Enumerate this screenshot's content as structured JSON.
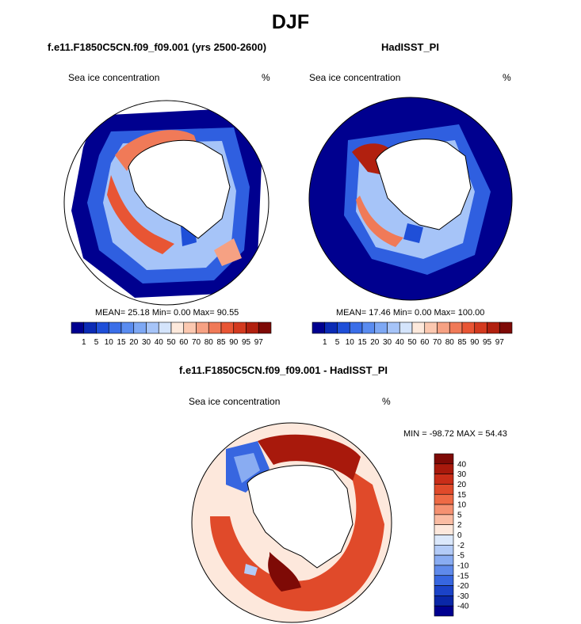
{
  "main_title": "DJF",
  "panels": [
    {
      "title": "f.e11.F1850C5CN.f09_f09.001 (yrs 2500-2600)",
      "variable": "Sea ice concentration",
      "units": "%",
      "stats": "MEAN=  25.18  Min=   0.00  Max=  90.55"
    },
    {
      "title": "HadISST_PI",
      "variable": "Sea ice concentration",
      "units": "%",
      "stats": "MEAN=  17.46  Min=   0.00  Max= 100.00"
    },
    {
      "title": "f.e11.F1850C5CN.f09_f09.001 - HadISST_PI",
      "variable": "Sea ice concentration",
      "units": "%",
      "stats": "MIN = -98.72 MAX =  54.43"
    }
  ],
  "colorbar_abs": {
    "levels": [
      "1",
      "5",
      "10",
      "15",
      "20",
      "30",
      "40",
      "50",
      "60",
      "70",
      "80",
      "85",
      "90",
      "95",
      "97"
    ],
    "colors": [
      "#00008f",
      "#0b2bb5",
      "#1f4fd8",
      "#3a6ee8",
      "#5a8cf0",
      "#7ea8f4",
      "#a6c4f8",
      "#d4e4fb",
      "#fde9dc",
      "#fbc8b0",
      "#f6a183",
      "#f07a58",
      "#e85534",
      "#d33a1f",
      "#b1200f",
      "#7e0a06"
    ]
  },
  "colorbar_diff": {
    "levels": [
      "40",
      "30",
      "20",
      "15",
      "10",
      "5",
      "2",
      "0",
      "-2",
      "-5",
      "-10",
      "-15",
      "-20",
      "-30",
      "-40"
    ],
    "colors": [
      "#7e0a06",
      "#a8190c",
      "#c92d18",
      "#e04a2a",
      "#ee6a45",
      "#f59171",
      "#fabca3",
      "#fde8dc",
      "#dbe8fb",
      "#b3cbf7",
      "#89acf2",
      "#5f8aeb",
      "#3766e0",
      "#1b43c8",
      "#0a27a8",
      "#00008f"
    ]
  },
  "colors": {
    "ocean_blue": "#00008f",
    "land": "#ffffff",
    "coast": "#000000"
  }
}
